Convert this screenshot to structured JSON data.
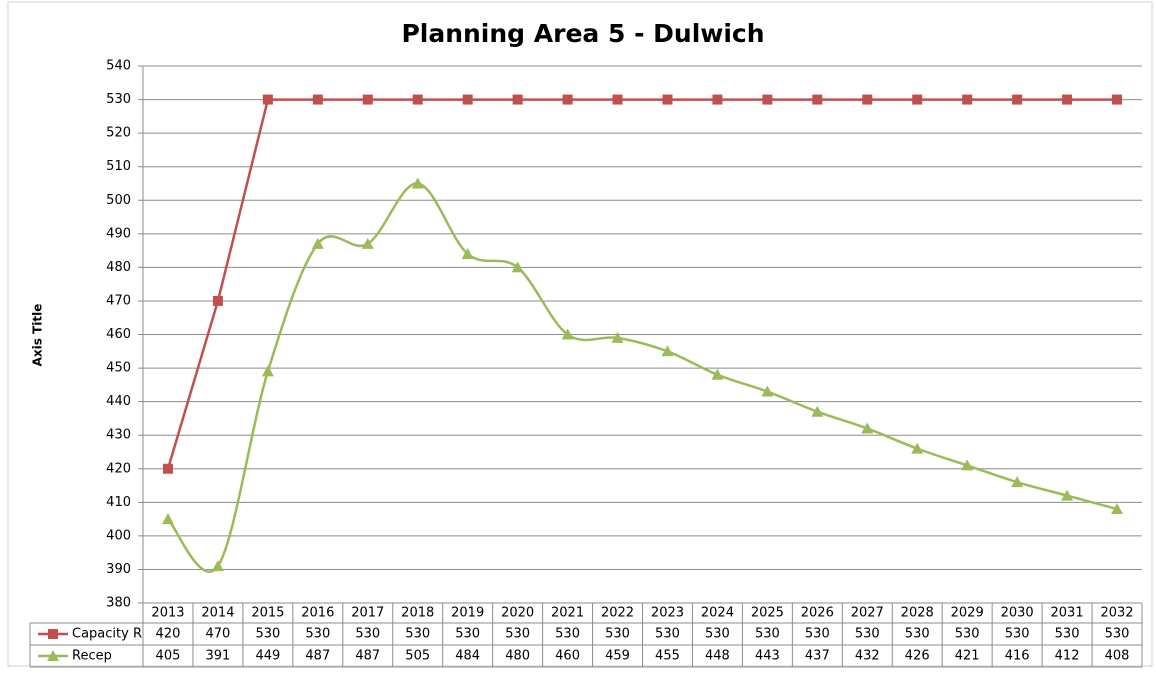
{
  "chart_data": {
    "type": "line",
    "title": "Planning Area 5 - Dulwich",
    "y_label": "Axis Title",
    "categories": [
      "2013",
      "2014",
      "2015",
      "2016",
      "2017",
      "2018",
      "2019",
      "2020",
      "2021",
      "2022",
      "2023",
      "2024",
      "2025",
      "2026",
      "2027",
      "2028",
      "2029",
      "2030",
      "2031",
      "2032"
    ],
    "series": [
      {
        "name": "Capacity R",
        "color": "#c0504d",
        "marker": "square",
        "smooth": false,
        "values": [
          420,
          470,
          530,
          530,
          530,
          530,
          530,
          530,
          530,
          530,
          530,
          530,
          530,
          530,
          530,
          530,
          530,
          530,
          530,
          530
        ]
      },
      {
        "name": "Recep",
        "color": "#9bbb59",
        "marker": "triangle",
        "smooth": true,
        "values": [
          405,
          391,
          449,
          487,
          487,
          505,
          484,
          480,
          460,
          459,
          455,
          448,
          443,
          437,
          432,
          426,
          421,
          416,
          412,
          408
        ]
      }
    ],
    "ylim": [
      380,
      540
    ],
    "yticks": [
      380,
      390,
      400,
      410,
      420,
      430,
      440,
      450,
      460,
      470,
      480,
      490,
      500,
      510,
      520,
      530,
      540
    ],
    "grid": true,
    "data_table": true
  }
}
